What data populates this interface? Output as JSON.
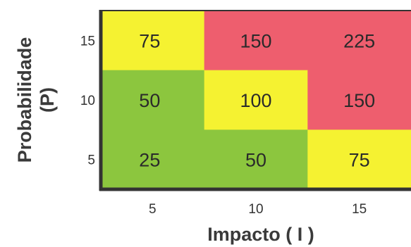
{
  "chart_data": {
    "type": "heatmap",
    "xlabel": "Impacto ( I )",
    "ylabel_line1": "Probabilidade",
    "ylabel_line2": "(P)",
    "x_ticks": [
      "5",
      "10",
      "15"
    ],
    "y_ticks": [
      "15",
      "10",
      "5"
    ],
    "x": [
      5,
      10,
      15
    ],
    "y": [
      15,
      10,
      5
    ],
    "values": [
      [
        75,
        150,
        225
      ],
      [
        50,
        100,
        150
      ],
      [
        25,
        50,
        75
      ]
    ],
    "colors": [
      [
        "#f5f231",
        "#ee5e6e",
        "#ee5e6e"
      ],
      [
        "#8cc63e",
        "#f5f231",
        "#ee5e6e"
      ],
      [
        "#8cc63e",
        "#8cc63e",
        "#f5f231"
      ]
    ],
    "palette": {
      "low": "#8cc63e",
      "medium": "#f5f231",
      "high": "#ee5e6e",
      "frame": "#333333"
    }
  }
}
